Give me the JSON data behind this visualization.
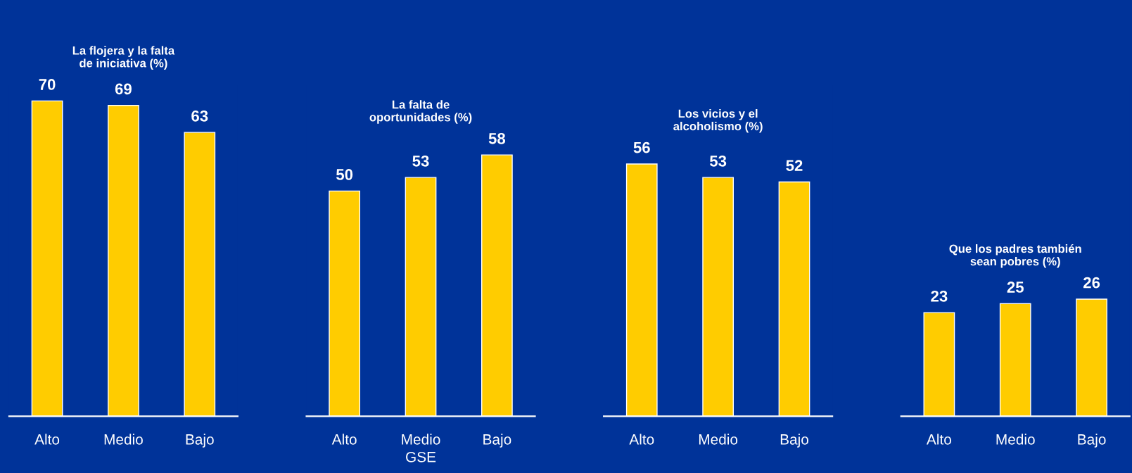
{
  "chart_data": [
    {
      "type": "bar",
      "title": "La flojera y la falta\nde iniciativa (%)",
      "categories": [
        "Alto",
        "Medio",
        "Bajo"
      ],
      "values": [
        70,
        69,
        63
      ],
      "color": "#ffcc00",
      "data_labels": true
    },
    {
      "type": "bar",
      "title": "La falta de\noportunidades (%)",
      "xlabel": "GSE",
      "categories": [
        "Alto",
        "Medio",
        "Bajo"
      ],
      "values": [
        50,
        53,
        58
      ],
      "color": "#ffcc00",
      "data_labels": true
    },
    {
      "type": "bar",
      "title": "Los vicios y el\nalcoholismo (%)",
      "categories": [
        "Alto",
        "Medio",
        "Bajo"
      ],
      "values": [
        56,
        53,
        52
      ],
      "color": "#ffcc00",
      "data_labels": true
    },
    {
      "type": "bar",
      "title": "Que los padres también\nsean pobres (%)",
      "categories": [
        "Alto",
        "Medio",
        "Bajo"
      ],
      "values": [
        23,
        25,
        26
      ],
      "color": "#ffcc00",
      "data_labels": true
    }
  ]
}
